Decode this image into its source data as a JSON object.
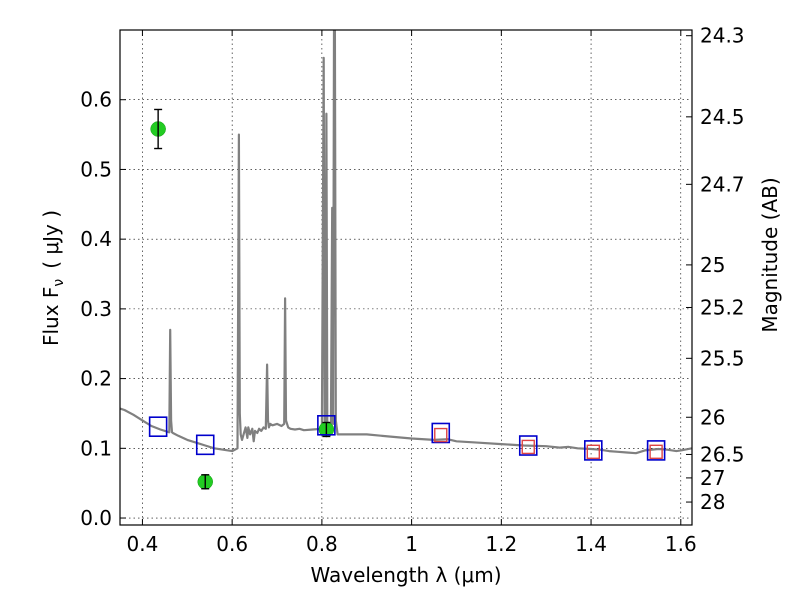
{
  "chart_data": {
    "type": "scatter",
    "xlabel": "Wavelength  λ (μm)",
    "ylabel": "Flux  F",
    "ylabel_sub": "ν",
    "ylabel_unit": "( μJy )",
    "y2label": "Magnitude (AB)",
    "xlim": [
      0.35,
      1.625
    ],
    "ylim": [
      -0.01,
      0.7
    ],
    "grid": true,
    "x_ticks": [
      0.4,
      0.6,
      0.8,
      1.0,
      1.2,
      1.4,
      1.6
    ],
    "x_tick_labels": [
      "0.4",
      "0.6",
      "0.8",
      "1",
      "1.2",
      "1.4",
      "1.6"
    ],
    "y_ticks": [
      0.0,
      0.1,
      0.2,
      0.3,
      0.4,
      0.5,
      0.6
    ],
    "y_tick_labels": [
      "0.0",
      "0.1",
      "0.2",
      "0.3",
      "0.4",
      "0.5",
      "0.6"
    ],
    "mag_ticks": [
      24.3,
      24.5,
      24.7,
      25,
      25.2,
      25.5,
      26,
      26.5,
      27,
      28
    ],
    "mag_tick_labels": [
      "24.3",
      "24.5",
      "24.7",
      "25",
      "25.2",
      "25.5",
      "26",
      "26.5",
      "27",
      "28"
    ],
    "series": [
      {
        "kind": "spectrum",
        "color": "#808080",
        "x": [
          0.35,
          0.36,
          0.38,
          0.4,
          0.42,
          0.44,
          0.46,
          0.462,
          0.464,
          0.466,
          0.468,
          0.48,
          0.5,
          0.52,
          0.54,
          0.56,
          0.58,
          0.6,
          0.612,
          0.615,
          0.617,
          0.619,
          0.622,
          0.63,
          0.634,
          0.636,
          0.64,
          0.645,
          0.648,
          0.651,
          0.656,
          0.66,
          0.665,
          0.67,
          0.675,
          0.678,
          0.68,
          0.682,
          0.685,
          0.69,
          0.7,
          0.71,
          0.716,
          0.718,
          0.72,
          0.725,
          0.73,
          0.74,
          0.75,
          0.76,
          0.78,
          0.8,
          0.804,
          0.806,
          0.808,
          0.81,
          0.812,
          0.815,
          0.82,
          0.823,
          0.825,
          0.827,
          0.829,
          0.831,
          0.833,
          0.835,
          0.84,
          0.86,
          0.9,
          0.95,
          1.0,
          1.05,
          1.08,
          1.1,
          1.15,
          1.2,
          1.25,
          1.3,
          1.33,
          1.35,
          1.37,
          1.4,
          1.42,
          1.44,
          1.46,
          1.48,
          1.5,
          1.52,
          1.55,
          1.57,
          1.59,
          1.6,
          1.625
        ],
        "y": [
          0.157,
          0.155,
          0.148,
          0.14,
          0.132,
          0.127,
          0.123,
          0.27,
          0.14,
          0.123,
          0.122,
          0.118,
          0.112,
          0.108,
          0.104,
          0.1,
          0.098,
          0.096,
          0.1,
          0.55,
          0.15,
          0.12,
          0.112,
          0.13,
          0.115,
          0.13,
          0.12,
          0.128,
          0.11,
          0.125,
          0.122,
          0.128,
          0.125,
          0.13,
          0.128,
          0.22,
          0.14,
          0.13,
          0.135,
          0.133,
          0.135,
          0.132,
          0.135,
          0.315,
          0.14,
          0.13,
          0.128,
          0.127,
          0.128,
          0.126,
          0.127,
          0.128,
          0.66,
          0.14,
          0.13,
          0.58,
          0.14,
          0.128,
          0.127,
          0.445,
          0.135,
          0.7,
          0.7,
          0.14,
          0.13,
          0.12,
          0.12,
          0.12,
          0.12,
          0.117,
          0.114,
          0.112,
          0.113,
          0.11,
          0.108,
          0.106,
          0.104,
          0.103,
          0.101,
          0.102,
          0.1,
          0.099,
          0.098,
          0.096,
          0.095,
          0.094,
          0.093,
          0.097,
          0.099,
          0.098,
          0.096,
          0.097,
          0.1
        ]
      },
      {
        "kind": "photometry",
        "color": "#22cc22",
        "x": [
          0.435,
          0.54,
          0.81
        ],
        "y": [
          0.558,
          0.052,
          0.127
        ],
        "yerr": [
          0.028,
          0.01,
          0.01
        ]
      },
      {
        "kind": "model-bands",
        "color": "#0000cc",
        "x": [
          0.435,
          0.54,
          0.81,
          1.065,
          1.26,
          1.405,
          1.545
        ],
        "y": [
          0.131,
          0.105,
          0.133,
          0.122,
          0.104,
          0.097,
          0.097
        ]
      },
      {
        "kind": "spectrum-bands",
        "color": "#dd4444",
        "x": [
          1.065,
          1.26,
          1.405,
          1.545
        ],
        "y": [
          0.119,
          0.102,
          0.095,
          0.095
        ]
      }
    ]
  }
}
